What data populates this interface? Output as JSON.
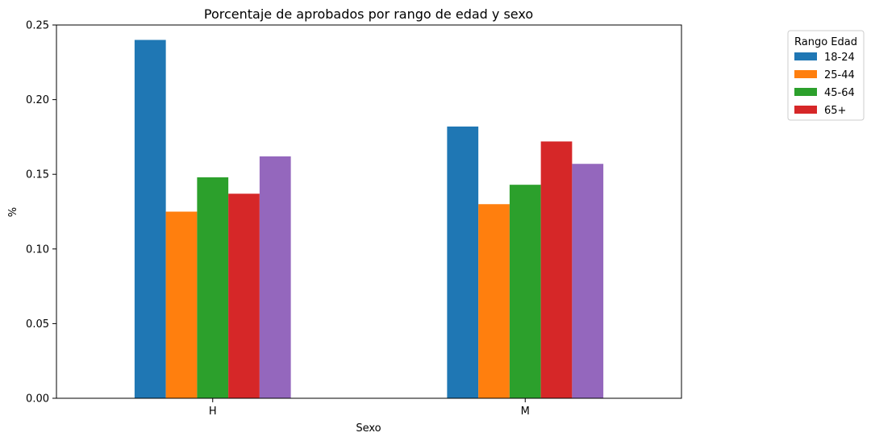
{
  "chart_data": {
    "type": "bar",
    "title": "Porcentaje de aprobados por rango de edad y sexo",
    "xlabel": "Sexo",
    "ylabel": "%",
    "categories": [
      "H",
      "M"
    ],
    "ylim": [
      0,
      0.25
    ],
    "yticks": [
      "0.00",
      "0.05",
      "0.10",
      "0.15",
      "0.20",
      "0.25"
    ],
    "grid": false,
    "legend_title": "Rango Edad",
    "legend_position": "outside-top-right",
    "series": [
      {
        "name": "18-24",
        "color": "#1f77b4",
        "values": [
          0.24,
          0.182
        ]
      },
      {
        "name": "25-44",
        "color": "#ff7f0e",
        "values": [
          0.125,
          0.13
        ]
      },
      {
        "name": "45-64",
        "color": "#2ca02c",
        "values": [
          0.148,
          0.143
        ]
      },
      {
        "name": "65+",
        "color": "#d62728",
        "values": [
          0.137,
          0.172
        ]
      },
      {
        "color": "#9467bd",
        "values": [
          0.162,
          0.157
        ]
      }
    ]
  }
}
